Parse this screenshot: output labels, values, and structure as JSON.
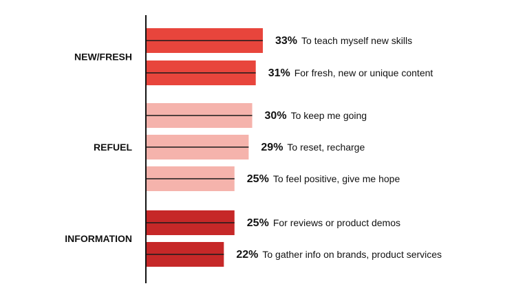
{
  "chart_data": {
    "type": "bar",
    "orientation": "horizontal",
    "xlim": [
      0,
      100
    ],
    "groups": [
      {
        "name": "NEW/FRESH",
        "color": "#e8453c",
        "bars": [
          {
            "value": 33,
            "value_label": "33%",
            "label": "To teach myself new skills"
          },
          {
            "value": 31,
            "value_label": "31%",
            "label": "For fresh, new or unique content"
          }
        ]
      },
      {
        "name": "REFUEL",
        "color": "#f5b3ac",
        "bars": [
          {
            "value": 30,
            "value_label": "30%",
            "label": "To keep me going"
          },
          {
            "value": 29,
            "value_label": "29%",
            "label": "To reset, recharge"
          },
          {
            "value": 25,
            "value_label": "25%",
            "label": "To feel positive, give me hope"
          }
        ]
      },
      {
        "name": "INFORMATION",
        "color": "#c62828",
        "bars": [
          {
            "value": 25,
            "value_label": "25%",
            "label": "For reviews or product demos"
          },
          {
            "value": 22,
            "value_label": "22%",
            "label": "To gather info on brands, product services"
          }
        ]
      }
    ],
    "axis_color": "#111111",
    "grid": false,
    "legend": "none"
  }
}
